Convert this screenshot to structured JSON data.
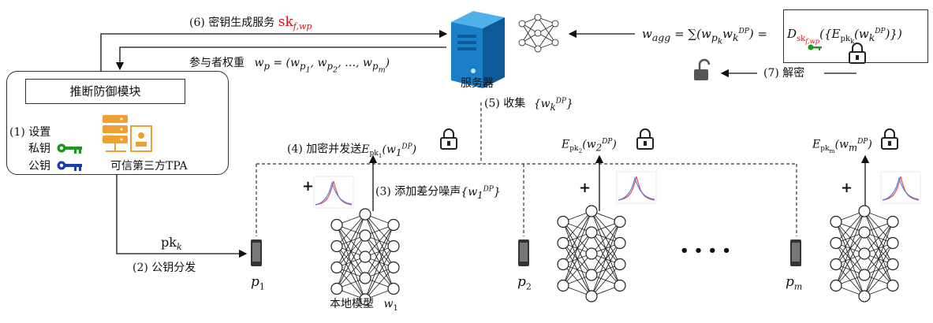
{
  "tpa": {
    "module_label": "推断防御模块",
    "setup_label": "(1) 设置",
    "private_key_label": "私钥",
    "public_key_label": "公钥",
    "tpa_name": "可信第三方TPA",
    "key_icon_color_private": "#1a9a1a",
    "key_icon_color_public": "#1a3fa8"
  },
  "server": {
    "label": "服务器",
    "color": "#1b7fc7"
  },
  "steps": {
    "step6": "(6) 密钥生成服务",
    "step6_key": "sk",
    "step6_key_sub": "f,wp",
    "weights_label": "参与者权重",
    "weights_formula": "w_p = (w_p1, w_p2, ..., w_pm)",
    "step5": "(5) 收集",
    "step5_set": "{w_k^DP}",
    "step4": "(4) 加密并发送",
    "step3": "(3) 添加差分噪声",
    "step3_set": "{w_1^DP}",
    "step2": "(2) 公钥分发",
    "pk_label": "pk",
    "pk_sub": "k",
    "step7": "(7) 解密",
    "agg_formula": "w_agg = Σ(w_pk w_k^DP) =",
    "decrypt_formula": "D_sk(f,wp)({E_pk(w_k^DP)})"
  },
  "participants": [
    {
      "name": "p",
      "sub": "1",
      "enc": "E_pk1(w_1^DP)"
    },
    {
      "name": "p",
      "sub": "2",
      "enc": "E_pk2(w_2^DP)"
    },
    {
      "name": "p",
      "sub": "m",
      "enc": "E_pkm(w_m^DP)"
    }
  ],
  "local_model_label": "本地模型",
  "local_model_var": "w",
  "local_model_sub": "1",
  "ellipsis": "• • • •",
  "plus": "+",
  "noise_curve_colors": [
    "#e05050",
    "#6080e0",
    "#c060c0"
  ]
}
